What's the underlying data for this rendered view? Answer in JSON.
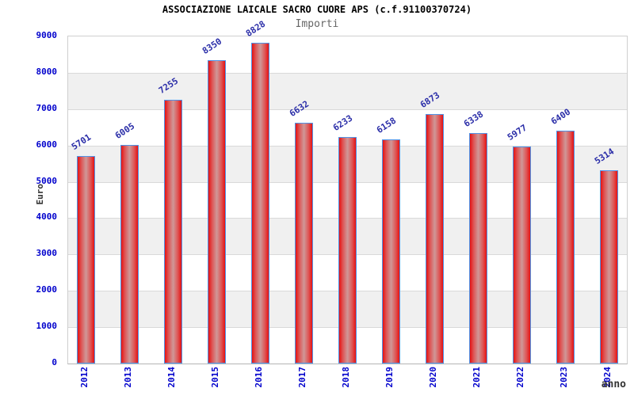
{
  "chart_data": {
    "type": "bar",
    "title": "ASSOCIAZIONE LAICALE SACRO CUORE APS (c.f.91100370724)",
    "subtitle": "Importi",
    "xlabel": "anno",
    "ylabel": "Euro",
    "categories": [
      "2012",
      "2013",
      "2014",
      "2015",
      "2016",
      "2017",
      "2018",
      "2019",
      "2020",
      "2021",
      "2022",
      "2023",
      "2024"
    ],
    "values": [
      5701,
      6005,
      7255,
      8350,
      8828,
      6632,
      6233,
      6158,
      6873,
      6338,
      5977,
      6400,
      5314
    ],
    "ylim": [
      0,
      9000
    ],
    "ytick_step": 1000,
    "ytick_labels": [
      "0",
      "1000",
      "2000",
      "3000",
      "4000",
      "5000",
      "6000",
      "7000",
      "8000",
      "9000"
    ],
    "grid": true,
    "legend": null,
    "colors": {
      "bar_edge_fill": "#e51212",
      "bar_center_fill": "#cf9898",
      "bar_border": "#4f94e8",
      "axis_tick_text": "#0000cc",
      "value_label_text": "#2a2da8",
      "band_gray": "#f0f0f0",
      "band_white": "#ffffff",
      "gridline": "#d9d9d9",
      "title_text": "#000000",
      "subtitle_text": "#666666",
      "axis_title_text": "#333333"
    }
  }
}
